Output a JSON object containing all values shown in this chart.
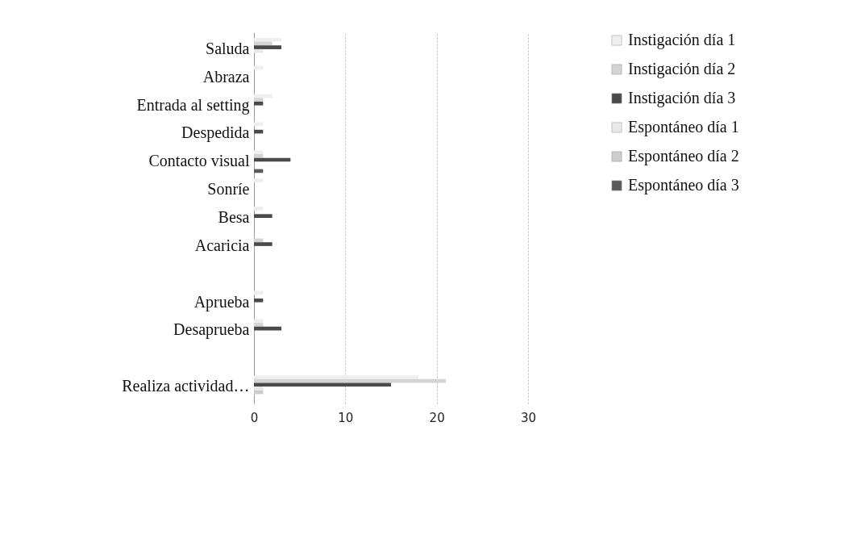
{
  "chart_data": {
    "type": "bar",
    "orientation": "horizontal",
    "categories": [
      "Saluda",
      "Abraza",
      "Entrada al setting",
      "Despedida",
      "Contacto visual",
      "Sonríe",
      "Besa",
      "Acaricia",
      null,
      "Aprueba",
      "Desaprueba",
      null,
      "Realiza actividad…"
    ],
    "series": [
      {
        "name": "Instigación día 1",
        "color": "#eeeeee",
        "values": [
          3,
          1,
          2,
          1,
          1,
          1,
          1,
          0,
          null,
          1,
          1,
          null,
          18
        ]
      },
      {
        "name": "Instigación día 2",
        "color": "#d4d4d4",
        "values": [
          2,
          0,
          1,
          0,
          1,
          0,
          0,
          1,
          null,
          0,
          1,
          null,
          21
        ]
      },
      {
        "name": "Instigación día 3",
        "color": "#4a4a4a",
        "values": [
          3,
          0,
          1,
          1,
          4,
          0,
          2,
          2,
          null,
          1,
          3,
          null,
          15
        ]
      },
      {
        "name": "Espontáneo día 1",
        "color": "#e8e8e8",
        "values": [
          1,
          0,
          0,
          0,
          0,
          0,
          0,
          0,
          null,
          0,
          0,
          null,
          1
        ]
      },
      {
        "name": "Espontáneo día 2",
        "color": "#cccccc",
        "values": [
          0,
          0,
          0,
          0,
          0,
          0,
          0,
          0,
          null,
          0,
          0,
          null,
          1
        ]
      },
      {
        "name": "Espontáneo día 3",
        "color": "#5a5a5a",
        "values": [
          0,
          0,
          0,
          0,
          1,
          0,
          0,
          0,
          null,
          0,
          0,
          null,
          0
        ]
      }
    ],
    "xlim": [
      0,
      30
    ],
    "xticks": [
      0,
      10,
      20,
      30
    ],
    "grid": "x",
    "legend": "right"
  }
}
